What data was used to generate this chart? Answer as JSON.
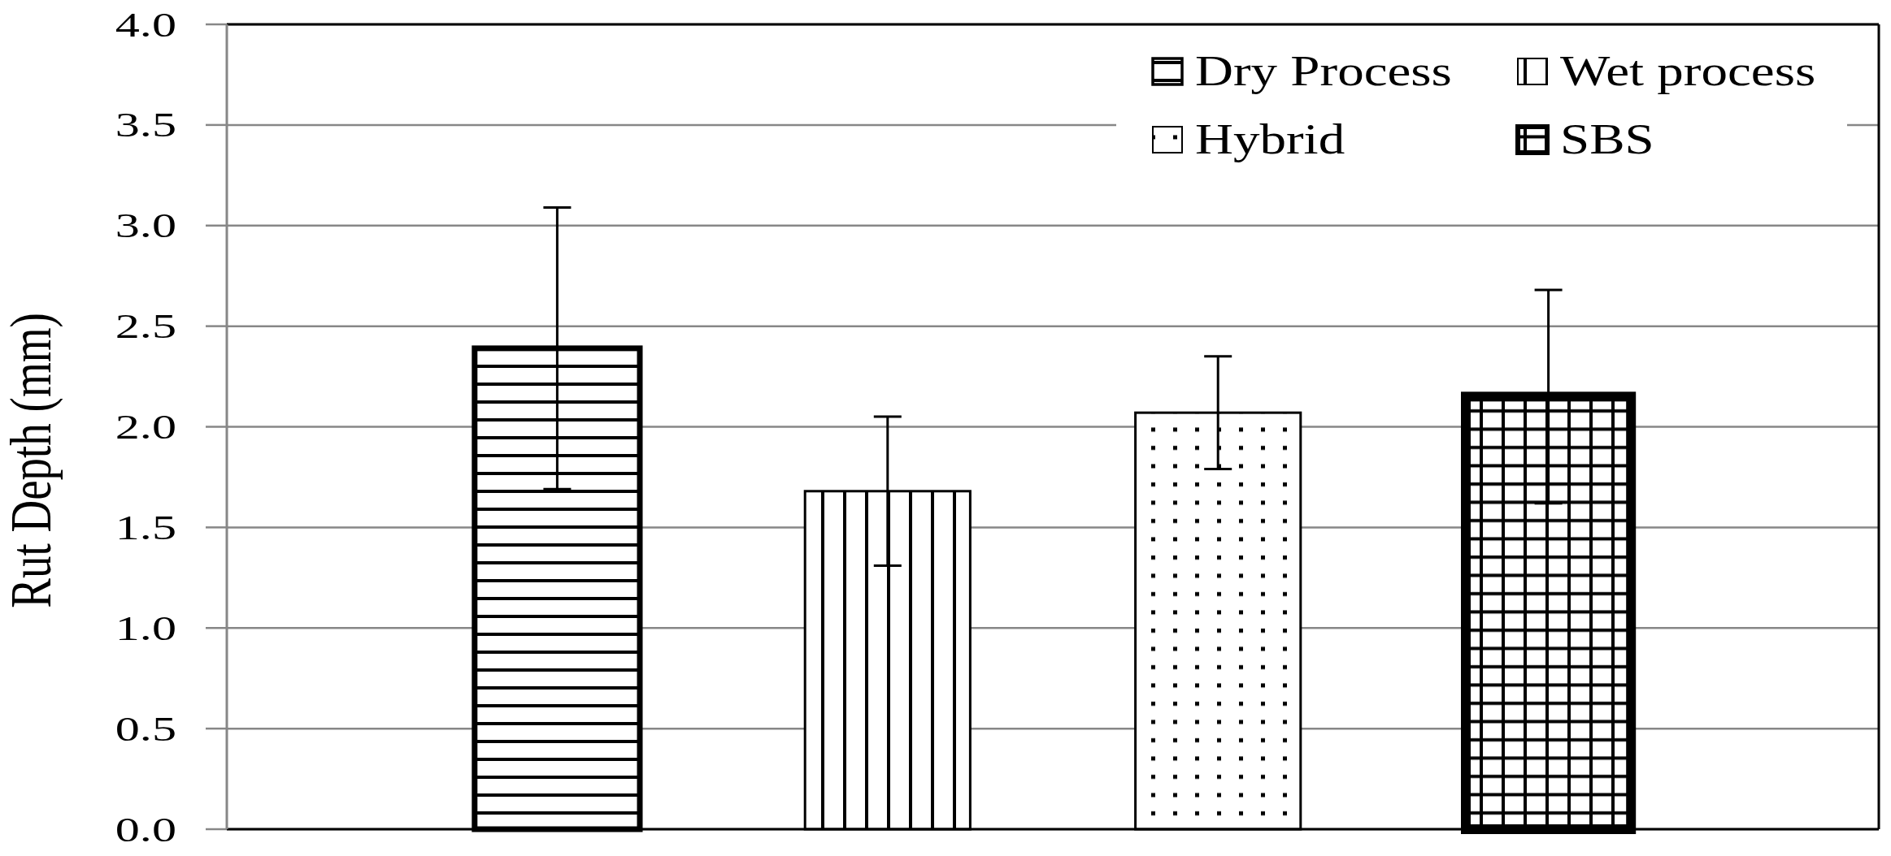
{
  "chart_data": {
    "type": "bar",
    "ylabel": "Rut Depth (mm)",
    "categories": [
      null,
      null,
      null,
      null
    ],
    "series": [
      {
        "name": "Dry Process",
        "color": "#000000",
        "values": [
          2.39,
          null,
          null,
          null
        ],
        "errors": [
          0.7,
          null,
          null,
          null
        ]
      },
      {
        "name": "Wet process",
        "color": "#000000",
        "values": [
          null,
          1.68,
          null,
          null
        ],
        "errors": [
          null,
          0.37,
          null,
          null
        ]
      },
      {
        "name": "Hybrid",
        "color": "#000000",
        "values": [
          null,
          null,
          2.07,
          null
        ],
        "errors": [
          null,
          null,
          0.28,
          null
        ]
      },
      {
        "name": "SBS",
        "color": "#000000",
        "values": [
          null,
          null,
          null,
          2.15
        ],
        "errors": [
          null,
          null,
          null,
          0.53
        ]
      }
    ],
    "ylim": [
      0,
      4
    ],
    "yticks": [
      {
        "value": 0,
        "label": "0.0"
      },
      {
        "value": 0.5,
        "label": "0.5"
      },
      {
        "value": 1,
        "label": "1.0"
      },
      {
        "value": 1.5,
        "label": "1.5"
      },
      {
        "value": 2,
        "label": "2.0"
      },
      {
        "value": 2.5,
        "label": "2.5"
      },
      {
        "value": 3,
        "label": "3.0"
      },
      {
        "value": 3.5,
        "label": "3.5"
      },
      {
        "value": 4,
        "label": "4.0"
      }
    ],
    "grid": "y",
    "legend": "top right"
  }
}
